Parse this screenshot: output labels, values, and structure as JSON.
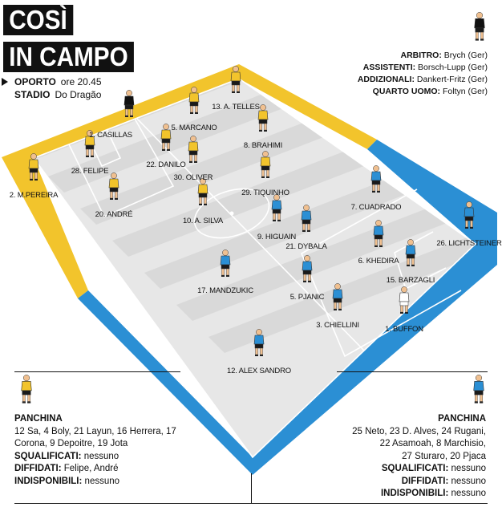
{
  "header": {
    "title_line1": "COSÌ",
    "title_line2": "IN CAMPO"
  },
  "match": {
    "team_label": "OPORTO",
    "time": "ore 20.45",
    "stadium_label": "STADIO",
    "stadium": "Do Dragão"
  },
  "officials": [
    {
      "role": "ARBITRO:",
      "name": "Brych (Ger)"
    },
    {
      "role": "ASSISTENTI:",
      "name": "Borsch-Lupp (Ger)"
    },
    {
      "role": "ADDIZIONALI:",
      "name": "Dankert-Fritz (Ger)"
    },
    {
      "role": "QUARTO UOMO:",
      "name": "Foltyn (Ger)"
    }
  ],
  "colors": {
    "porto": "#f2c42c",
    "juve": "#2b8fd4",
    "gk_porto": "#111111",
    "gk_juve": "#ffffff",
    "referee": "#111111"
  },
  "players": [
    {
      "label": "1. CASILLAS",
      "team": "porto_gk"
    },
    {
      "label": "5. MARCANO",
      "team": "porto"
    },
    {
      "label": "13. A. TELLES",
      "team": "porto"
    },
    {
      "label": "8. BRAHIMI",
      "team": "porto"
    },
    {
      "label": "28. FELIPE",
      "team": "porto"
    },
    {
      "label": "22. DANILO",
      "team": "porto"
    },
    {
      "label": "30. OLIVER",
      "team": "porto"
    },
    {
      "label": "2. M.PEREIRA",
      "team": "porto"
    },
    {
      "label": "20. ANDRÉ",
      "team": "porto"
    },
    {
      "label": "10. A. SILVA",
      "team": "porto"
    },
    {
      "label": "29. TIQUINHO",
      "team": "porto"
    },
    {
      "label": "7. CUADRADO",
      "team": "juve"
    },
    {
      "label": "9. HIGUAIN",
      "team": "juve"
    },
    {
      "label": "21. DYBALA",
      "team": "juve"
    },
    {
      "label": "26. LICHTSTEINER",
      "team": "juve"
    },
    {
      "label": "6. KHEDIRA",
      "team": "juve"
    },
    {
      "label": "15. BARZAGLI",
      "team": "juve"
    },
    {
      "label": "17. MANDZUKIC",
      "team": "juve"
    },
    {
      "label": "5. PJANIC",
      "team": "juve"
    },
    {
      "label": "3. CHIELLINI",
      "team": "juve"
    },
    {
      "label": "1. BUFFON",
      "team": "juve_gk"
    },
    {
      "label": "12. ALEX SANDRO",
      "team": "juve"
    }
  ],
  "bench_left": {
    "heading": "PANCHINA",
    "list": "12 Sa, 4 Boly, 21 Layun, 16 Herrera, 17 Corona, 9 Depoitre, 19 Jota",
    "squalificati_label": "SQUALIFICATI:",
    "squalificati": "nessuno",
    "diffidati_label": "DIFFIDATI:",
    "diffidati": "Felipe, André",
    "indisponibili_label": "INDISPONIBILI:",
    "indisponibili": "nessuno"
  },
  "bench_right": {
    "heading": "PANCHINA",
    "list_line1": "25 Neto, 23 D. Alves, 24 Rugani,",
    "list_line2": "22 Asamoah, 8 Marchisio,",
    "list_line3": "27 Sturaro, 20 Pjaca",
    "squalificati_label": "SQUALIFICATI:",
    "squalificati": "nessuno",
    "diffidati_label": "DIFFIDATI:",
    "diffidati": "nessuno",
    "indisponibili_label": "INDISPONIBILI:",
    "indisponibili": "nessuno"
  }
}
